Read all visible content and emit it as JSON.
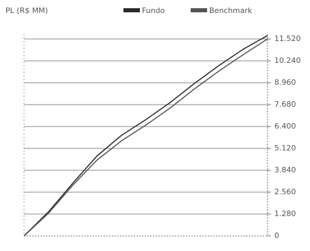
{
  "chart_data": {
    "type": "line",
    "title": "PL (R$ MM)",
    "x": [
      0,
      1,
      2,
      3,
      4,
      5,
      6,
      7,
      8,
      9,
      10
    ],
    "xlim": [
      0,
      10
    ],
    "series": [
      {
        "name": "Fundo",
        "color": "#2a2a2a",
        "values": [
          0,
          1400,
          3080,
          4680,
          5880,
          6800,
          7800,
          8920,
          9960,
          10920,
          11720
        ]
      },
      {
        "name": "Benchmark",
        "color": "#555555",
        "values": [
          0,
          1320,
          2960,
          4440,
          5560,
          6480,
          7480,
          8600,
          9640,
          10600,
          11520
        ]
      }
    ],
    "ylim": [
      0,
      11800
    ],
    "yticks": [
      0,
      {
        "value": 1280,
        "label": "1.280"
      },
      {
        "value": 2560,
        "label": "2.560"
      },
      {
        "value": 3840,
        "label": "3.840"
      },
      {
        "value": 5120,
        "label": "5.120"
      },
      {
        "value": 6400,
        "label": "6.400"
      },
      {
        "value": 7680,
        "label": "7.680"
      },
      {
        "value": 8960,
        "label": "8.960"
      },
      {
        "value": 10240,
        "label": "10.240"
      },
      {
        "value": 11520,
        "label": "11.520"
      }
    ],
    "grid": true
  }
}
